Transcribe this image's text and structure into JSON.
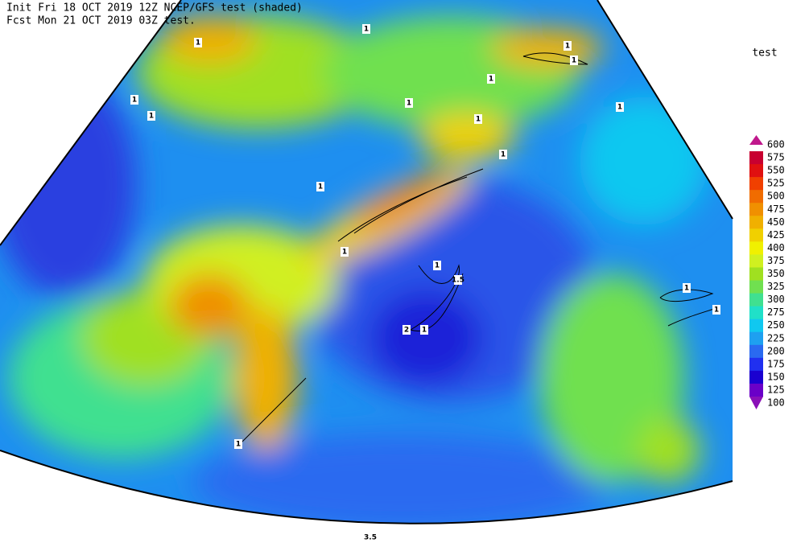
{
  "header": {
    "line1": "Init  Fri 18 OCT 2019 12Z   NCEP/GFS test (shaded)",
    "line2": "Fcst Mon 21 OCT 2019 03Z  test."
  },
  "colorbar": {
    "title": "test",
    "ticks": [
      600,
      575,
      550,
      525,
      500,
      475,
      450,
      425,
      400,
      375,
      350,
      325,
      300,
      275,
      250,
      225,
      200,
      175,
      150,
      125,
      100
    ],
    "colors": [
      "#c0188c",
      "#c80030",
      "#e01010",
      "#f04000",
      "#f06c00",
      "#f09000",
      "#f0b000",
      "#f0d000",
      "#f0f000",
      "#d0f020",
      "#a0e020",
      "#70e050",
      "#40e090",
      "#20e0c8",
      "#10c8f0",
      "#1ea0f0",
      "#2a6af0",
      "#2030f0",
      "#1a00d0",
      "#6a00c8",
      "#8a10b8"
    ]
  },
  "map": {
    "contour_labels": [
      "1",
      "1",
      "1",
      "1",
      "1",
      "1",
      "1",
      "1",
      "1",
      "1",
      "1",
      "1",
      "1",
      "1",
      "1.5",
      "2",
      "1",
      "1",
      "1",
      "1",
      "3.5"
    ]
  }
}
